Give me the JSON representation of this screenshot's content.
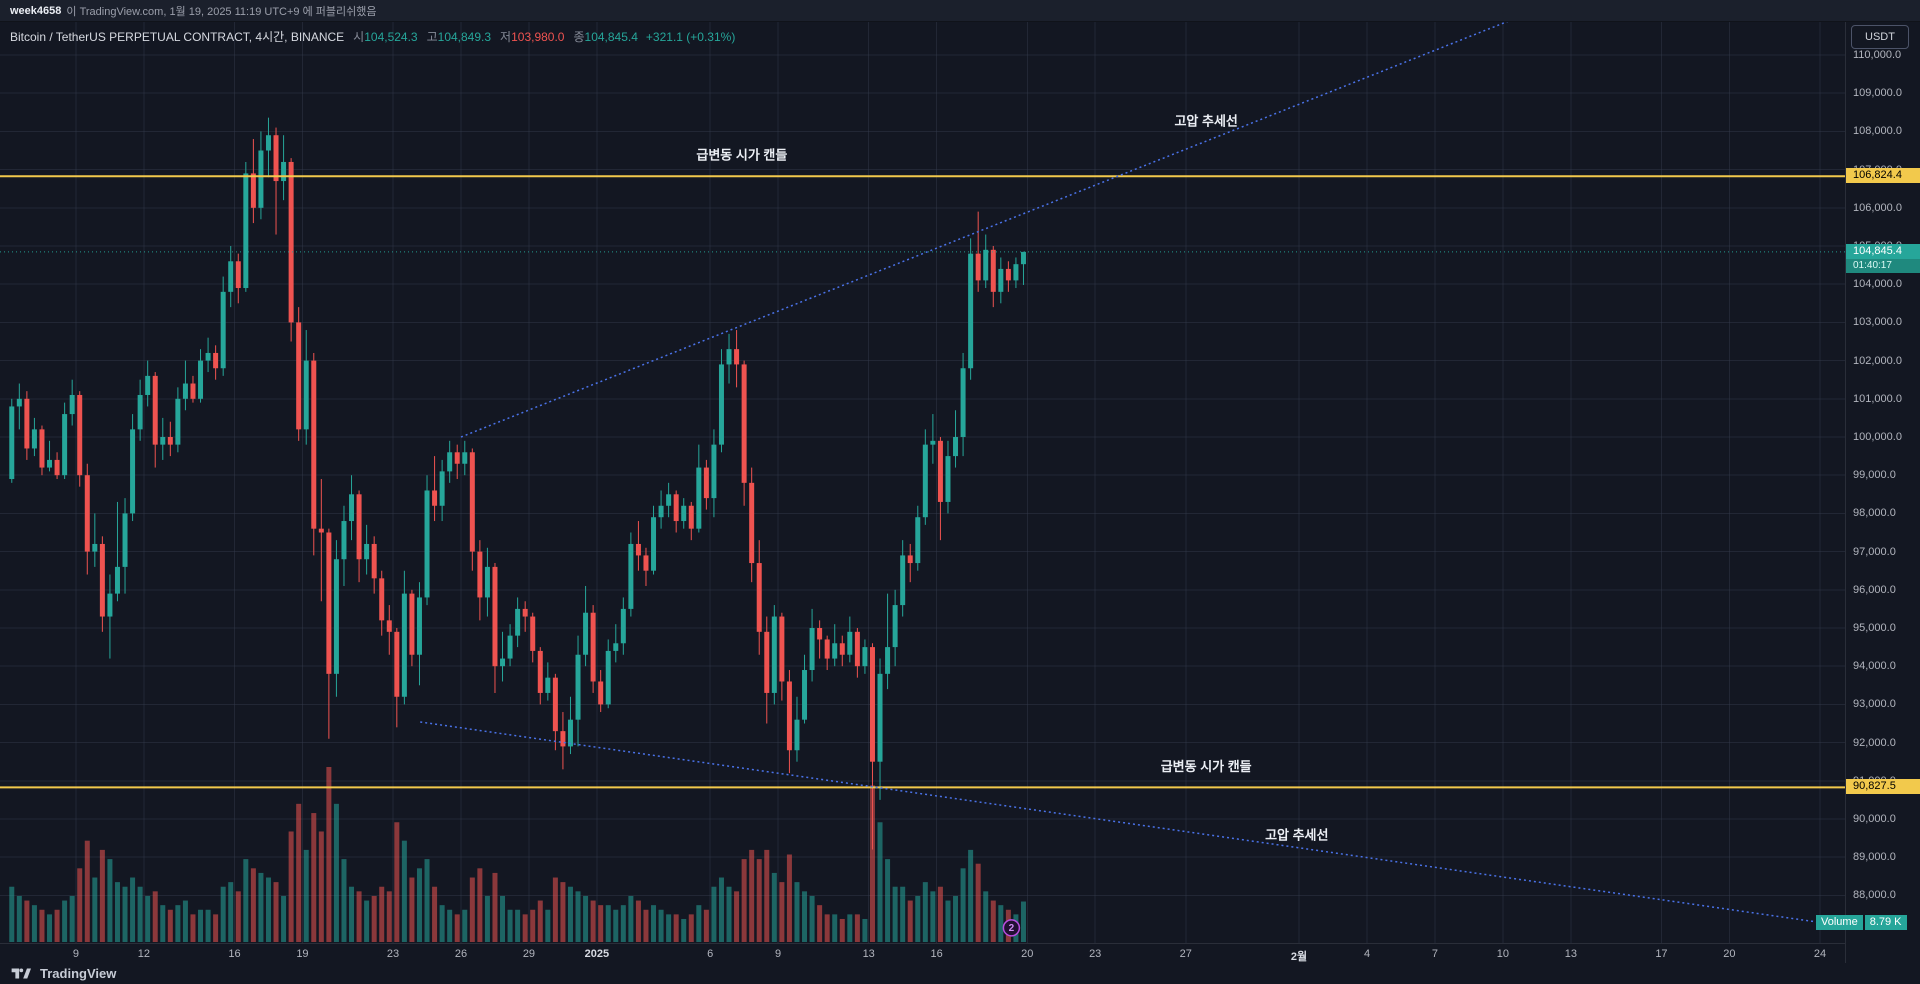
{
  "publish_bar": {
    "username": "week4658",
    "text": "이 TradingView.com, 1월 19, 2025 11:19 UTC+9 에 퍼블리쉬했음"
  },
  "symbol_row": {
    "title": "Bitcoin / TetherUS PERPETUAL CONTRACT, 4시간, BINANCE",
    "o_label": "시",
    "o": "104,524.3",
    "h_label": "고",
    "h": "104,849.3",
    "l_label": "저",
    "l": "103,980.0",
    "c_label": "종",
    "c": "104,845.4",
    "change": "+321.1 (+0.31%)"
  },
  "price_axis": {
    "currency": "USDT",
    "ticks": [
      [
        110000,
        "110,000.0"
      ],
      [
        109000,
        "109,000.0"
      ],
      [
        108000,
        "108,000.0"
      ],
      [
        107000,
        "107,000.0"
      ],
      [
        106000,
        "106,000.0"
      ],
      [
        105000,
        "105,000.0"
      ],
      [
        104000,
        "104,000.0"
      ],
      [
        103000,
        "103,000.0"
      ],
      [
        102000,
        "102,000.0"
      ],
      [
        101000,
        "101,000.0"
      ],
      [
        100000,
        "100,000.0"
      ],
      [
        99000,
        "99,000.0"
      ],
      [
        98000,
        "98,000.0"
      ],
      [
        97000,
        "97,000.0"
      ],
      [
        96000,
        "96,000.0"
      ],
      [
        95000,
        "95,000.0"
      ],
      [
        94000,
        "94,000.0"
      ],
      [
        93000,
        "93,000.0"
      ],
      [
        92000,
        "92,000.0"
      ],
      [
        91000,
        "91,000.0"
      ],
      [
        90000,
        "90,000.0"
      ],
      [
        89000,
        "89,000.0"
      ],
      [
        88000,
        "88,000.0"
      ]
    ]
  },
  "time_axis": {
    "labels": [
      {
        "label": "9",
        "day": 3
      },
      {
        "label": "12",
        "day": 6
      },
      {
        "label": "16",
        "day": 10
      },
      {
        "label": "19",
        "day": 13
      },
      {
        "label": "23",
        "day": 17
      },
      {
        "label": "26",
        "day": 20
      },
      {
        "label": "29",
        "day": 23
      },
      {
        "label": "2025",
        "day": 26,
        "strong": true
      },
      {
        "label": "6",
        "day": 31
      },
      {
        "label": "9",
        "day": 34
      },
      {
        "label": "13",
        "day": 38
      },
      {
        "label": "16",
        "day": 41
      },
      {
        "label": "20",
        "day": 45
      },
      {
        "label": "23",
        "day": 48
      },
      {
        "label": "27",
        "day": 52
      },
      {
        "label": "2월",
        "day": 57,
        "strong": true
      },
      {
        "label": "4",
        "day": 60
      },
      {
        "label": "7",
        "day": 63
      },
      {
        "label": "10",
        "day": 66
      },
      {
        "label": "13",
        "day": 69
      },
      {
        "label": "17",
        "day": 73
      },
      {
        "label": "20",
        "day": 76
      },
      {
        "label": "24",
        "day": 80
      }
    ]
  },
  "last_price": {
    "value": 104845.4,
    "label": "104,845.4",
    "countdown": "01:40:17"
  },
  "volume_badge": {
    "label": "Volume",
    "value": "8.79 K"
  },
  "annotations": {
    "upper_level": {
      "price": 106824.4,
      "axis_label": "106,824.4",
      "text": "급변동 시가 캔들",
      "text_anchor": {
        "day": 32.4,
        "price": 107350
      }
    },
    "lower_level": {
      "price": 90827.5,
      "axis_label": "90,827.5",
      "text": "급변동 시가 캔들",
      "text_anchor": {
        "day": 52.9,
        "price": 91350
      }
    },
    "ascending_trendline": {
      "text": "고압 추세선",
      "from": {
        "day": 20,
        "price": 100000
      },
      "to": {
        "day": 66.3,
        "price": 110900
      },
      "text_anchor": {
        "day": 52.9,
        "price": 108250
      }
    },
    "descending_trendline": {
      "text": "고압 추세선",
      "from": {
        "day": 18.2,
        "price": 92540
      },
      "to": {
        "day": 80.5,
        "price": 87250
      },
      "text_anchor": {
        "day": 56.9,
        "price": 89550
      }
    },
    "marker": {
      "value": "2",
      "day": 44.3,
      "price": 87150
    }
  },
  "footer": {
    "logo_text": "TradingView"
  },
  "colors": {
    "bg": "#131722",
    "up": "#26a69a",
    "down": "#ef5350",
    "vol_up": "rgba(38,166,154,0.55)",
    "vol_down": "rgba(239,83,80,0.55)",
    "grid": "rgba(54,60,78,0.45)",
    "level": "#f2c94c",
    "trend": "#4a72e8",
    "text_bright": "#eceff5",
    "last_price_badge": "#26a69a",
    "level_badge": "#f2c94c"
  },
  "chart_data": {
    "type": "candlestick",
    "symbol": "Bitcoin / TetherUS PERPETUAL CONTRACT",
    "exchange": "BINANCE",
    "interval": "4시간",
    "price_range": [
      88000,
      110000
    ],
    "start_date": "2024-12-06",
    "bars_per_day": 3,
    "volume_unit": "K",
    "current_bar": {
      "open": 104524.3,
      "high": 104849.3,
      "low": 103980.0,
      "close": 104845.4,
      "change": 321.1,
      "change_pct": 0.31
    },
    "candles": [
      [
        98900,
        101000,
        98800,
        100800,
        12
      ],
      [
        100800,
        101400,
        100200,
        101000,
        10
      ],
      [
        101000,
        101200,
        99400,
        99700,
        9
      ],
      [
        99700,
        100500,
        99500,
        100200,
        8
      ],
      [
        100200,
        100300,
        99000,
        99200,
        7
      ],
      [
        99200,
        99900,
        99100,
        99400,
        6
      ],
      [
        99400,
        99600,
        98900,
        99000,
        7
      ],
      [
        99000,
        100900,
        98900,
        100600,
        9
      ],
      [
        100600,
        101500,
        100300,
        101100,
        10
      ],
      [
        101100,
        101200,
        98700,
        99000,
        16
      ],
      [
        99000,
        99300,
        96400,
        97000,
        22
      ],
      [
        97000,
        98000,
        96600,
        97200,
        14
      ],
      [
        97200,
        97400,
        94900,
        95300,
        20
      ],
      [
        95300,
        96400,
        94200,
        95900,
        18
      ],
      [
        95900,
        98300,
        95700,
        96600,
        13
      ],
      [
        96600,
        98400,
        95900,
        98000,
        12
      ],
      [
        98000,
        100600,
        97800,
        100200,
        14
      ],
      [
        100200,
        101500,
        99900,
        101100,
        12
      ],
      [
        101100,
        102000,
        100800,
        101600,
        10
      ],
      [
        101600,
        101700,
        99200,
        99800,
        11
      ],
      [
        99800,
        100500,
        99400,
        100000,
        8
      ],
      [
        100000,
        100400,
        99500,
        99800,
        7
      ],
      [
        99800,
        101300,
        99600,
        101000,
        8
      ],
      [
        101000,
        102000,
        100700,
        101400,
        9
      ],
      [
        101400,
        101600,
        100900,
        101000,
        6
      ],
      [
        101000,
        102300,
        100900,
        102000,
        7
      ],
      [
        102000,
        102600,
        101700,
        102200,
        7
      ],
      [
        102200,
        102400,
        101500,
        101800,
        6
      ],
      [
        101800,
        104200,
        101600,
        103800,
        12
      ],
      [
        103800,
        105000,
        103400,
        104600,
        13
      ],
      [
        104600,
        104800,
        103500,
        103900,
        11
      ],
      [
        103900,
        107200,
        103800,
        106900,
        18
      ],
      [
        106900,
        107800,
        105600,
        106000,
        16
      ],
      [
        106000,
        108000,
        105700,
        107500,
        15
      ],
      [
        107500,
        108360,
        106800,
        107900,
        14
      ],
      [
        107900,
        108100,
        105300,
        106700,
        13
      ],
      [
        106700,
        107900,
        106200,
        107200,
        10
      ],
      [
        107200,
        107300,
        102500,
        103000,
        24
      ],
      [
        103000,
        103400,
        99900,
        100200,
        30
      ],
      [
        100200,
        102800,
        99800,
        102000,
        20
      ],
      [
        102000,
        102200,
        96900,
        97600,
        28
      ],
      [
        97600,
        98900,
        95700,
        97500,
        24
      ],
      [
        97500,
        97600,
        92100,
        93800,
        38
      ],
      [
        93800,
        97300,
        93200,
        96800,
        30
      ],
      [
        96800,
        98200,
        96100,
        97800,
        18
      ],
      [
        97800,
        99000,
        97300,
        98500,
        12
      ],
      [
        98500,
        98600,
        96200,
        96800,
        11
      ],
      [
        96800,
        97700,
        96400,
        97200,
        9
      ],
      [
        97200,
        97400,
        95900,
        96300,
        10
      ],
      [
        96300,
        96500,
        94800,
        95200,
        12
      ],
      [
        95200,
        95600,
        94300,
        94900,
        11
      ],
      [
        94900,
        95000,
        92400,
        93200,
        26
      ],
      [
        93200,
        96500,
        93000,
        95900,
        22
      ],
      [
        95900,
        96000,
        94000,
        94300,
        14
      ],
      [
        94300,
        96200,
        93500,
        95800,
        16
      ],
      [
        95800,
        99000,
        95600,
        98600,
        18
      ],
      [
        98600,
        99500,
        97800,
        98200,
        12
      ],
      [
        98200,
        99400,
        97800,
        99100,
        8
      ],
      [
        99100,
        99900,
        98800,
        99600,
        7
      ],
      [
        99600,
        99800,
        98900,
        99300,
        6
      ],
      [
        99300,
        99900,
        99000,
        99600,
        7
      ],
      [
        99600,
        99700,
        96500,
        97000,
        14
      ],
      [
        97000,
        97300,
        95200,
        95800,
        16
      ],
      [
        95800,
        97100,
        95300,
        96600,
        10
      ],
      [
        96600,
        96700,
        93300,
        94000,
        15
      ],
      [
        94000,
        94900,
        93600,
        94200,
        10
      ],
      [
        94200,
        95100,
        94000,
        94800,
        7
      ],
      [
        94800,
        95800,
        94500,
        95500,
        7
      ],
      [
        95500,
        95700,
        94900,
        95300,
        6
      ],
      [
        95300,
        95400,
        94100,
        94400,
        7
      ],
      [
        94400,
        94500,
        93000,
        93300,
        9
      ],
      [
        93300,
        94100,
        93100,
        93700,
        7
      ],
      [
        93700,
        93800,
        91800,
        92300,
        14
      ],
      [
        92300,
        92800,
        91300,
        91900,
        13
      ],
      [
        91900,
        93200,
        91700,
        92600,
        12
      ],
      [
        92600,
        94800,
        91900,
        94300,
        11
      ],
      [
        94300,
        96100,
        94000,
        95400,
        10
      ],
      [
        95400,
        95600,
        93300,
        93600,
        9
      ],
      [
        93600,
        93900,
        92800,
        93000,
        8
      ],
      [
        93000,
        94700,
        92900,
        94400,
        8
      ],
      [
        94400,
        95100,
        94100,
        94600,
        7
      ],
      [
        94600,
        95800,
        94300,
        95500,
        8
      ],
      [
        95500,
        97500,
        95300,
        97200,
        10
      ],
      [
        97200,
        97800,
        96500,
        96900,
        9
      ],
      [
        96900,
        97100,
        96100,
        96500,
        7
      ],
      [
        96500,
        98200,
        96400,
        97900,
        8
      ],
      [
        97900,
        98600,
        97600,
        98200,
        7
      ],
      [
        98200,
        98800,
        97900,
        98500,
        6
      ],
      [
        98500,
        98600,
        97500,
        97800,
        6
      ],
      [
        97800,
        98400,
        97600,
        98200,
        5
      ],
      [
        98200,
        98300,
        97300,
        97600,
        6
      ],
      [
        97600,
        99800,
        97500,
        99200,
        8
      ],
      [
        99200,
        99400,
        98100,
        98400,
        7
      ],
      [
        98400,
        100200,
        97900,
        99800,
        12
      ],
      [
        99800,
        102300,
        99600,
        101900,
        14
      ],
      [
        101900,
        102700,
        101400,
        102300,
        12
      ],
      [
        102300,
        102800,
        101300,
        101900,
        11
      ],
      [
        101900,
        102000,
        98200,
        98800,
        18
      ],
      [
        98800,
        99200,
        96200,
        96700,
        20
      ],
      [
        96700,
        97300,
        94300,
        94900,
        18
      ],
      [
        94900,
        95300,
        92500,
        93300,
        20
      ],
      [
        93300,
        95600,
        93000,
        95300,
        15
      ],
      [
        95300,
        95400,
        93100,
        93600,
        13
      ],
      [
        93600,
        93900,
        91200,
        91800,
        19
      ],
      [
        91800,
        93200,
        91500,
        92600,
        13
      ],
      [
        92600,
        94300,
        92500,
        93900,
        11
      ],
      [
        93900,
        95500,
        93600,
        95000,
        10
      ],
      [
        95000,
        95200,
        94200,
        94700,
        8
      ],
      [
        94700,
        94800,
        93900,
        94200,
        6
      ],
      [
        94200,
        95100,
        94000,
        94600,
        6
      ],
      [
        94600,
        94800,
        94000,
        94300,
        5
      ],
      [
        94300,
        95300,
        94100,
        94900,
        6
      ],
      [
        94900,
        95000,
        93700,
        94000,
        6
      ],
      [
        94000,
        94700,
        93800,
        94500,
        5
      ],
      [
        94500,
        94600,
        89200,
        91500,
        34
      ],
      [
        91500,
        94200,
        90500,
        93800,
        26
      ],
      [
        93800,
        95900,
        93400,
        94500,
        18
      ],
      [
        94500,
        96000,
        94000,
        95600,
        12
      ],
      [
        95600,
        97300,
        95300,
        96900,
        12
      ],
      [
        96900,
        97200,
        96200,
        96700,
        9
      ],
      [
        96700,
        98200,
        96500,
        97900,
        10
      ],
      [
        97900,
        100200,
        97700,
        99800,
        13
      ],
      [
        99800,
        100600,
        99300,
        99900,
        11
      ],
      [
        99900,
        100000,
        97300,
        98300,
        12
      ],
      [
        98300,
        99900,
        98000,
        99500,
        9
      ],
      [
        99500,
        100700,
        99200,
        100000,
        10
      ],
      [
        100000,
        102200,
        99500,
        101800,
        16
      ],
      [
        101800,
        105200,
        101500,
        104800,
        20
      ],
      [
        104800,
        105900,
        103800,
        104100,
        17
      ],
      [
        104100,
        105300,
        103900,
        104900,
        11
      ],
      [
        104900,
        105000,
        103400,
        103800,
        9
      ],
      [
        103800,
        104700,
        103500,
        104400,
        8
      ],
      [
        104400,
        104600,
        103800,
        104100,
        7
      ],
      [
        104100,
        104700,
        103900,
        104524.3,
        6
      ],
      [
        104524.3,
        104849.3,
        103980,
        104845.4,
        8.79
      ]
    ]
  }
}
